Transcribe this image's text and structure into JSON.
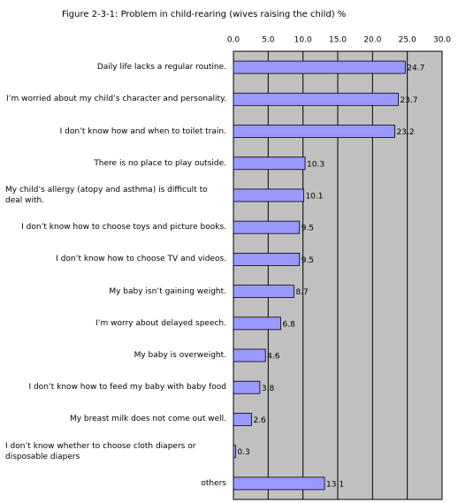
{
  "chart_data": {
    "type": "bar",
    "orientation": "horizontal",
    "title": "Figure 2-3-1: Problem in child-rearing (wives raising the child) %",
    "categories": [
      "Daily life lacks a regular routine.",
      "I’m worried about my child’s character and personality.",
      "I don’t know how and when to toilet train.",
      "There is no place to play outside.",
      "My child’s allergy (atopy and asthma) is difficult to deal with.",
      "I don’t know how to choose toys and picture books.",
      "I don’t know how to choose TV and videos.",
      "My baby isn’t gaining weight.",
      "I’m worry about delayed speech.",
      "My baby is overweight.",
      "I don’t know how to feed my baby with baby food",
      "My breast milk does not come out well.",
      "I don’t know whether to choose cloth diapers or disposable diapers",
      "others"
    ],
    "values": [
      24.7,
      23.7,
      23.2,
      10.3,
      10.1,
      9.5,
      9.5,
      8.7,
      6.8,
      4.6,
      3.8,
      2.6,
      0.3,
      13.1
    ],
    "color": "#9999ff",
    "xlim": [
      0,
      30
    ],
    "xticks": [
      {
        "value": 0,
        "label": "0.0"
      },
      {
        "value": 5,
        "label": "5.0"
      },
      {
        "value": 10,
        "label": "10.0"
      },
      {
        "value": 15,
        "label": "15.0"
      },
      {
        "value": 20,
        "label": "20.0"
      },
      {
        "value": 25,
        "label": "25.0"
      },
      {
        "value": 30,
        "label": "30.0"
      }
    ],
    "grid": true
  }
}
